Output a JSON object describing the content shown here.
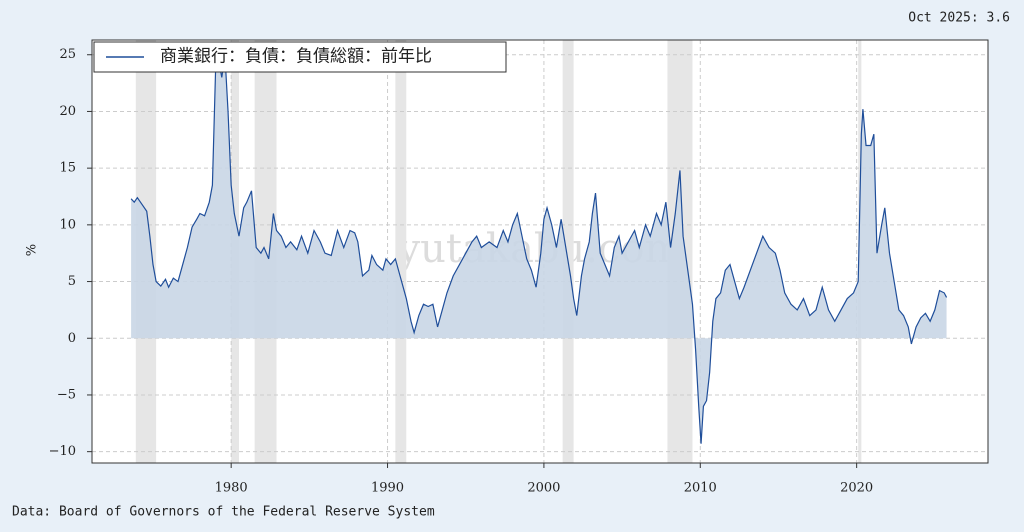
{
  "chart_data": {
    "type": "line",
    "annotation": "Oct 2025: 3.6",
    "source": "Data: Board of Governors of the Federal Reserve System",
    "watermark": "yutakabu.com",
    "ylabel": "%",
    "xlim": [
      1971.1,
      2028.4
    ],
    "ylim": [
      -11,
      26.3
    ],
    "xticks": [
      1980,
      1990,
      2000,
      2010,
      2020
    ],
    "yticks": [
      {
        "value": -10,
        "label": "−10"
      },
      {
        "value": -5,
        "label": "−5"
      },
      0,
      5,
      10,
      15,
      20,
      25
    ],
    "grid": true,
    "legend": "upper left",
    "recession_color": "#e6e6e6",
    "recessions": [
      [
        1973.9,
        1975.2
      ],
      [
        1980.0,
        1980.5
      ],
      [
        1981.5,
        1982.9
      ],
      [
        1990.5,
        1991.2
      ],
      [
        2001.2,
        2001.9
      ],
      [
        2007.9,
        2009.5
      ],
      [
        2020.1,
        2020.3
      ]
    ],
    "x": [
      1973.6,
      1973.8,
      1974.0,
      1974.3,
      1974.6,
      1974.8,
      1975.0,
      1975.2,
      1975.5,
      1975.8,
      1976.0,
      1976.3,
      1976.6,
      1976.9,
      1977.2,
      1977.5,
      1977.8,
      1978.0,
      1978.3,
      1978.6,
      1978.8,
      1979.0,
      1979.2,
      1979.4,
      1979.6,
      1979.8,
      1980.0,
      1980.2,
      1980.5,
      1980.8,
      1981.0,
      1981.3,
      1981.6,
      1981.9,
      1982.1,
      1982.4,
      1982.7,
      1982.9,
      1983.2,
      1983.5,
      1983.8,
      1984.2,
      1984.5,
      1984.9,
      1985.3,
      1985.7,
      1986.0,
      1986.4,
      1986.8,
      1987.2,
      1987.6,
      1987.9,
      1988.1,
      1988.4,
      1988.8,
      1989.0,
      1989.3,
      1989.7,
      1989.9,
      1990.2,
      1990.5,
      1990.8,
      1991.2,
      1991.5,
      1991.7,
      1992.0,
      1992.3,
      1992.6,
      1992.9,
      1993.2,
      1993.5,
      1993.8,
      1994.2,
      1994.6,
      1995.0,
      1995.4,
      1995.7,
      1996.0,
      1996.5,
      1997.0,
      1997.4,
      1997.7,
      1998.0,
      1998.3,
      1998.6,
      1998.9,
      1999.2,
      1999.5,
      1999.8,
      2000.0,
      2000.2,
      2000.5,
      2000.8,
      2001.1,
      2001.4,
      2001.7,
      2001.9,
      2002.1,
      2002.4,
      2002.6,
      2002.9,
      2003.1,
      2003.3,
      2003.6,
      2003.9,
      2004.2,
      2004.5,
      2004.8,
      2005.0,
      2005.4,
      2005.8,
      2006.1,
      2006.5,
      2006.8,
      2007.2,
      2007.5,
      2007.8,
      2008.1,
      2008.4,
      2008.7,
      2008.9,
      2009.2,
      2009.5,
      2009.7,
      2009.9,
      2010.05,
      2010.2,
      2010.4,
      2010.6,
      2010.8,
      2011.0,
      2011.3,
      2011.6,
      2011.9,
      2012.2,
      2012.5,
      2012.8,
      2013.2,
      2013.6,
      2014.0,
      2014.4,
      2014.8,
      2015.1,
      2015.4,
      2015.8,
      2016.2,
      2016.6,
      2017.0,
      2017.4,
      2017.8,
      2018.2,
      2018.6,
      2019.0,
      2019.4,
      2019.8,
      2020.1,
      2020.3,
      2020.4,
      2020.6,
      2020.9,
      2021.1,
      2021.3,
      2021.6,
      2021.8,
      2022.1,
      2022.4,
      2022.7,
      2023.0,
      2023.3,
      2023.5,
      2023.8,
      2024.1,
      2024.4,
      2024.7,
      2025.0,
      2025.3,
      2025.6,
      2025.75
    ],
    "series": [
      {
        "name": "商業銀行：負債：負債総額：前年比",
        "color": "#1f4e9a",
        "fill": "#c9d6e6",
        "values": [
          12.3,
          12.0,
          12.4,
          11.8,
          11.2,
          9.0,
          6.5,
          5.0,
          4.6,
          5.2,
          4.5,
          5.3,
          5.0,
          6.5,
          8.0,
          9.8,
          10.5,
          11.0,
          10.8,
          12.0,
          13.5,
          23.5,
          24.5,
          23.0,
          25.0,
          20.0,
          13.5,
          11.0,
          9.0,
          11.5,
          12.0,
          13.0,
          8.0,
          7.5,
          8.0,
          7.0,
          11.0,
          9.5,
          9.0,
          8.0,
          8.5,
          7.8,
          9.0,
          7.5,
          9.5,
          8.5,
          7.5,
          7.3,
          9.5,
          8.0,
          9.5,
          9.3,
          8.5,
          5.5,
          6.0,
          7.3,
          6.5,
          6.0,
          7.0,
          6.5,
          7.0,
          5.5,
          3.5,
          1.5,
          0.5,
          2.0,
          3.0,
          2.8,
          3.0,
          1.0,
          2.5,
          4.0,
          5.5,
          6.5,
          7.5,
          8.5,
          9.0,
          8.0,
          8.5,
          8.0,
          9.5,
          8.5,
          10.0,
          11.0,
          9.0,
          7.0,
          6.0,
          4.5,
          7.5,
          10.5,
          11.5,
          10.0,
          8.0,
          10.5,
          8.0,
          5.5,
          3.5,
          2.0,
          5.5,
          7.0,
          8.5,
          11.0,
          12.8,
          7.5,
          6.5,
          5.5,
          8.0,
          9.0,
          7.5,
          8.5,
          9.5,
          8.0,
          10.0,
          9.0,
          11.0,
          10.0,
          12.0,
          8.0,
          11.0,
          14.8,
          9.0,
          6.0,
          3.0,
          -1.0,
          -6.0,
          -9.3,
          -6.0,
          -5.5,
          -3.0,
          1.5,
          3.5,
          4.0,
          6.0,
          6.5,
          5.0,
          3.5,
          4.5,
          6.0,
          7.5,
          9.0,
          8.0,
          7.5,
          6.0,
          4.0,
          3.0,
          2.5,
          3.5,
          2.0,
          2.5,
          4.5,
          2.5,
          1.5,
          2.5,
          3.5,
          4.0,
          5.0,
          18.0,
          20.2,
          17.0,
          17.0,
          18.0,
          7.5,
          10.0,
          11.5,
          7.5,
          5.0,
          2.5,
          2.0,
          1.0,
          -0.5,
          1.0,
          1.8,
          2.2,
          1.5,
          2.5,
          4.2,
          4.0,
          3.6
        ]
      }
    ]
  }
}
